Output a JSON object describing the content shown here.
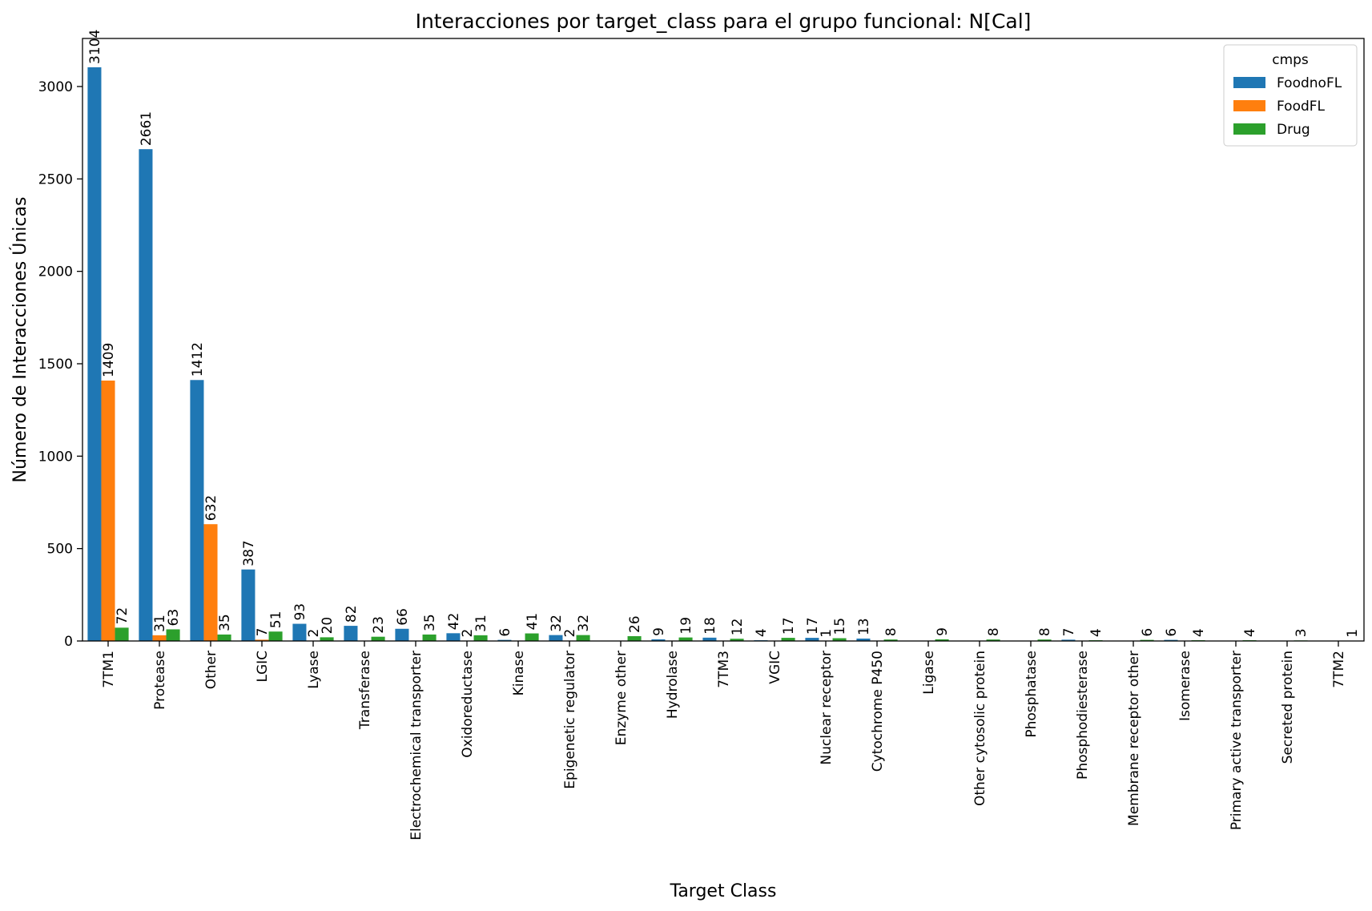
{
  "chart_data": {
    "type": "bar",
    "title": "Interacciones por target_class para el grupo funcional: N[Cal]",
    "xlabel": "Target Class",
    "ylabel": "Número de Interacciones Únicas",
    "ylim": [
      0,
      3260
    ],
    "yticks": [
      0,
      500,
      1000,
      1500,
      2000,
      2500,
      3000
    ],
    "legend": {
      "title": "cmps",
      "position": "top-right"
    },
    "categories": [
      "7TM1",
      "Protease",
      "Other",
      "LGIC",
      "Lyase",
      "Transferase",
      "Electrochemical transporter",
      "Oxidoreductase",
      "Kinase",
      "Epigenetic regulator",
      "Enzyme other",
      "Hydrolase",
      "7TM3",
      "VGIC",
      "Nuclear receptor",
      "Cytochrome P450",
      "Ligase",
      "Other cytosolic protein",
      "Phosphatase",
      "Phosphodiesterase",
      "Membrane receptor other",
      "Isomerase",
      "Primary active transporter",
      "Secreted protein",
      "7TM2"
    ],
    "series": [
      {
        "name": "FoodnoFL",
        "color": "#1f77b4",
        "values": [
          3104,
          2661,
          1412,
          387,
          93,
          82,
          66,
          42,
          6,
          32,
          null,
          9,
          18,
          4,
          17,
          13,
          null,
          null,
          null,
          7,
          null,
          6,
          null,
          null,
          null
        ]
      },
      {
        "name": "FoodFL",
        "color": "#ff7f0e",
        "values": [
          1409,
          31,
          632,
          7,
          2,
          null,
          null,
          2,
          null,
          2,
          null,
          null,
          null,
          null,
          1,
          null,
          null,
          null,
          null,
          null,
          null,
          null,
          null,
          null,
          null
        ]
      },
      {
        "name": "Drug",
        "color": "#2ca02c",
        "values": [
          72,
          63,
          35,
          51,
          20,
          23,
          35,
          31,
          41,
          32,
          26,
          19,
          12,
          17,
          15,
          8,
          9,
          8,
          8,
          4,
          6,
          4,
          4,
          3,
          1
        ]
      }
    ]
  }
}
